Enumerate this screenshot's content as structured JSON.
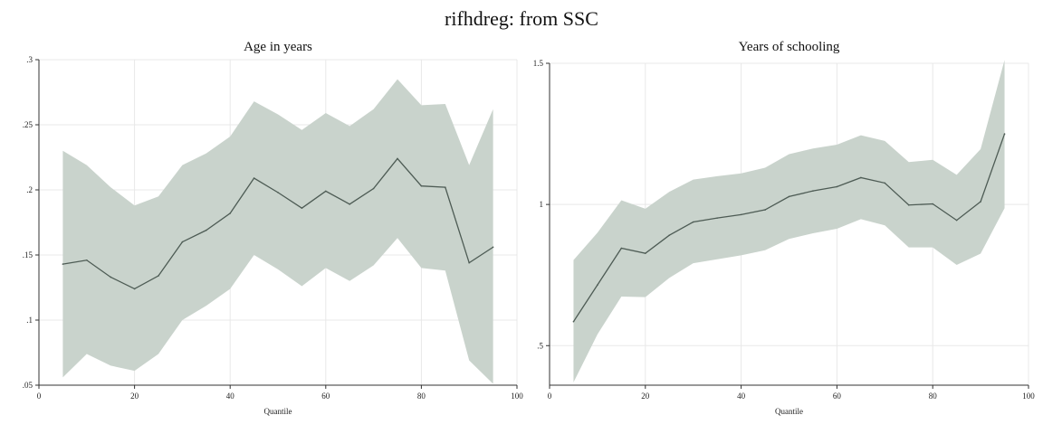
{
  "title": "rifhdreg: from SSC",
  "chart_data": [
    {
      "type": "area",
      "title": "Age in years",
      "xlabel": "Quantile",
      "ylabel": "",
      "xlim": [
        0,
        100
      ],
      "ylim": [
        0.05,
        0.3
      ],
      "xticks": [
        0,
        20,
        40,
        60,
        80,
        100
      ],
      "xtick_labels": [
        "0",
        "20",
        "40",
        "60",
        "80",
        "100"
      ],
      "yticks": [
        0.05,
        0.1,
        0.15,
        0.2,
        0.25,
        0.3
      ],
      "ytick_labels": [
        ".05",
        ".1",
        ".15",
        ".2",
        ".25",
        ".3"
      ],
      "grid": true,
      "x": [
        5,
        10,
        15,
        20,
        25,
        30,
        35,
        40,
        45,
        50,
        55,
        60,
        65,
        70,
        75,
        80,
        85,
        90,
        95
      ],
      "estimate": [
        0.143,
        0.146,
        0.133,
        0.124,
        0.134,
        0.16,
        0.169,
        0.182,
        0.209,
        0.198,
        0.186,
        0.199,
        0.189,
        0.201,
        0.224,
        0.203,
        0.202,
        0.144,
        0.156
      ],
      "lower": [
        0.056,
        0.074,
        0.065,
        0.061,
        0.074,
        0.1,
        0.111,
        0.124,
        0.15,
        0.139,
        0.126,
        0.14,
        0.13,
        0.142,
        0.163,
        0.14,
        0.138,
        0.069,
        0.051
      ],
      "upper": [
        0.23,
        0.219,
        0.202,
        0.188,
        0.195,
        0.219,
        0.228,
        0.241,
        0.268,
        0.258,
        0.246,
        0.259,
        0.249,
        0.262,
        0.285,
        0.265,
        0.266,
        0.219,
        0.262
      ],
      "colors": {
        "band": "#c9d3cc",
        "line": "#4d5b54",
        "grid": "#e8e8e8",
        "axis": "#333333"
      }
    },
    {
      "type": "area",
      "title": "Years of schooling",
      "xlabel": "Quantile",
      "ylabel": "",
      "xlim": [
        0,
        100
      ],
      "ylim": [
        0.36,
        1.5
      ],
      "xticks": [
        0,
        20,
        40,
        60,
        80,
        100
      ],
      "xtick_labels": [
        "0",
        "20",
        "40",
        "60",
        "80",
        "100"
      ],
      "yticks": [
        0.5,
        1,
        1.5
      ],
      "ytick_labels": [
        ".5",
        "1",
        "1.5"
      ],
      "grid": true,
      "x": [
        5,
        10,
        15,
        20,
        25,
        30,
        35,
        40,
        45,
        50,
        55,
        60,
        65,
        70,
        75,
        80,
        85,
        90,
        95
      ],
      "estimate": [
        0.585,
        0.715,
        0.845,
        0.827,
        0.891,
        0.938,
        0.952,
        0.964,
        0.981,
        1.028,
        1.048,
        1.063,
        1.095,
        1.076,
        0.998,
        1.002,
        0.944,
        1.01,
        1.25
      ],
      "lower": [
        0.37,
        0.54,
        0.674,
        0.672,
        0.74,
        0.792,
        0.806,
        0.82,
        0.838,
        0.878,
        0.898,
        0.914,
        0.948,
        0.926,
        0.848,
        0.848,
        0.786,
        0.826,
        0.987
      ],
      "upper": [
        0.803,
        0.9,
        1.015,
        0.985,
        1.045,
        1.088,
        1.1,
        1.11,
        1.13,
        1.178,
        1.198,
        1.212,
        1.245,
        1.225,
        1.15,
        1.158,
        1.105,
        1.196,
        1.512
      ],
      "colors": {
        "band": "#c9d3cc",
        "line": "#4d5b54",
        "grid": "#e8e8e8",
        "axis": "#333333"
      }
    }
  ]
}
